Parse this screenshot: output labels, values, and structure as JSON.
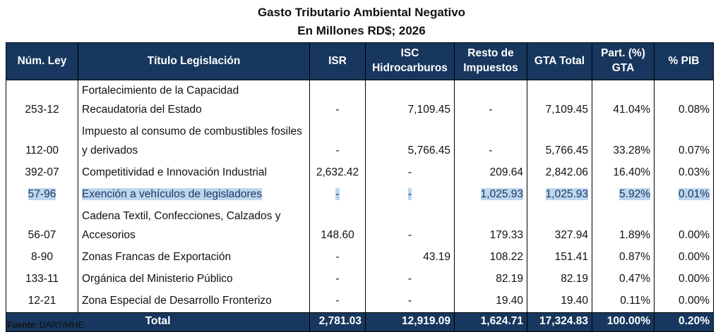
{
  "header": {
    "title": "Gasto Tributario Ambiental Negativo",
    "subtitle": "En Millones RD$; 2026"
  },
  "table": {
    "columns": [
      "Núm. Ley",
      "Título Legislación",
      "ISR",
      "ISC Hidrocarburos",
      "Resto de Impuestos",
      "GTA Total",
      "Part. (%) GTA",
      "% PIB"
    ],
    "rows": [
      [
        "253-12",
        "Fortalecimiento de la Capacidad Recaudatoria del Estado",
        "-",
        "7,109.45",
        "-",
        "7,109.45",
        "41.04%",
        "0.08%"
      ],
      [
        "112-00",
        "Impuesto al consumo de combustibles fosiles y derivados",
        "-",
        "5,766.45",
        "-",
        "5,766.45",
        "33.28%",
        "0.07%"
      ],
      [
        "392-07",
        "Competitividad e Innovación Industrial",
        "2,632.42",
        "-",
        "209.64",
        "2,842.06",
        "16.40%",
        "0.03%"
      ],
      [
        "57-96",
        "Exención a vehículos de legisladores",
        "-",
        "-",
        "1,025.93",
        "1,025.93",
        "5.92%",
        "0.01%"
      ],
      [
        "56-07",
        "Cadena Textil, Confecciones, Calzados y Accesorios",
        "148.60",
        "-",
        "179.33",
        "327.94",
        "1.89%",
        "0.00%"
      ],
      [
        "8-90",
        "Zonas Francas de Exportación",
        "-",
        "43.19",
        "108.22",
        "151.41",
        "0.87%",
        "0.00%"
      ],
      [
        "133-11",
        "Orgánica del Ministerio Público",
        "-",
        "-",
        "82.19",
        "82.19",
        "0.47%",
        "0.00%"
      ],
      [
        "12-21",
        "Zona Especial de Desarrollo Fronterizo",
        "-",
        "-",
        "19.40",
        "19.40",
        "0.11%",
        "0.00%"
      ]
    ],
    "total": [
      "Total",
      "2,781.03",
      "12,919.09",
      "1,624.71",
      "17,324.83",
      "100.00%",
      "0.20%"
    ]
  },
  "source": {
    "label": "Fuente",
    "text": ": DART/MHE."
  }
}
